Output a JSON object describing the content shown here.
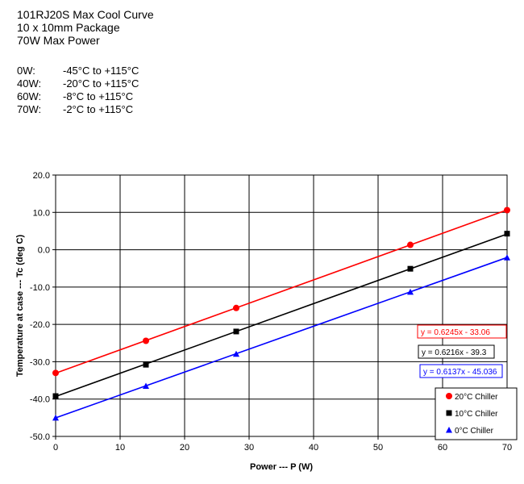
{
  "header": {
    "title_lines": [
      "101RJ20S Max Cool Curve",
      "10 x 10mm Package",
      "70W Max Power"
    ],
    "specs": [
      {
        "label": "0W:",
        "value": "-45°C to +115°C"
      },
      {
        "label": "40W:",
        "value": "-20°C to +115°C"
      },
      {
        "label": "60W:",
        "value": "-8°C to +115°C"
      },
      {
        "label": "70W:",
        "value": "-2°C to +115°C"
      }
    ]
  },
  "chart_data": {
    "type": "scatter",
    "xlabel": "Power --- P (W)",
    "ylabel": "Temperature at case --- Tc (deg C)",
    "xlim": [
      0,
      70
    ],
    "ylim": [
      -50,
      20
    ],
    "x_ticks": [
      "0",
      "10",
      "20",
      "30",
      "40",
      "50",
      "60",
      "70"
    ],
    "y_ticks": [
      "20.0",
      "10.0",
      "0.0",
      "-10.0",
      "-20.0",
      "-30.0",
      "-40.0",
      "-50.0"
    ],
    "grid": true,
    "legend_position": "bottom-right",
    "series": [
      {
        "name": "20°C Chiller",
        "color": "#ff0000",
        "marker": "circle",
        "x": [
          0,
          14,
          28,
          55,
          70
        ],
        "y": [
          -33.0,
          -24.4,
          -15.6,
          1.3,
          10.6
        ],
        "trendline": {
          "slope": 0.6245,
          "intercept": -33.06,
          "label": "y = 0.6245x - 33.06",
          "border": "#ff0000"
        }
      },
      {
        "name": "10°C Chiller",
        "color": "#000000",
        "marker": "square",
        "x": [
          0,
          14,
          28,
          55,
          70
        ],
        "y": [
          -39.2,
          -30.8,
          -21.9,
          -5.1,
          4.3
        ],
        "trendline": {
          "slope": 0.6216,
          "intercept": -39.3,
          "label": "y = 0.6216x - 39.3",
          "border": "#000000"
        }
      },
      {
        "name": "0°C Chiller",
        "color": "#0000ff",
        "marker": "triangle",
        "x": [
          0,
          14,
          28,
          55,
          70
        ],
        "y": [
          -45.0,
          -36.5,
          -27.9,
          -11.3,
          -2.1
        ],
        "trendline": {
          "slope": 0.6137,
          "intercept": -45.036,
          "label": "y = 0.6137x - 45.036",
          "border": "#0000ff"
        }
      }
    ]
  }
}
